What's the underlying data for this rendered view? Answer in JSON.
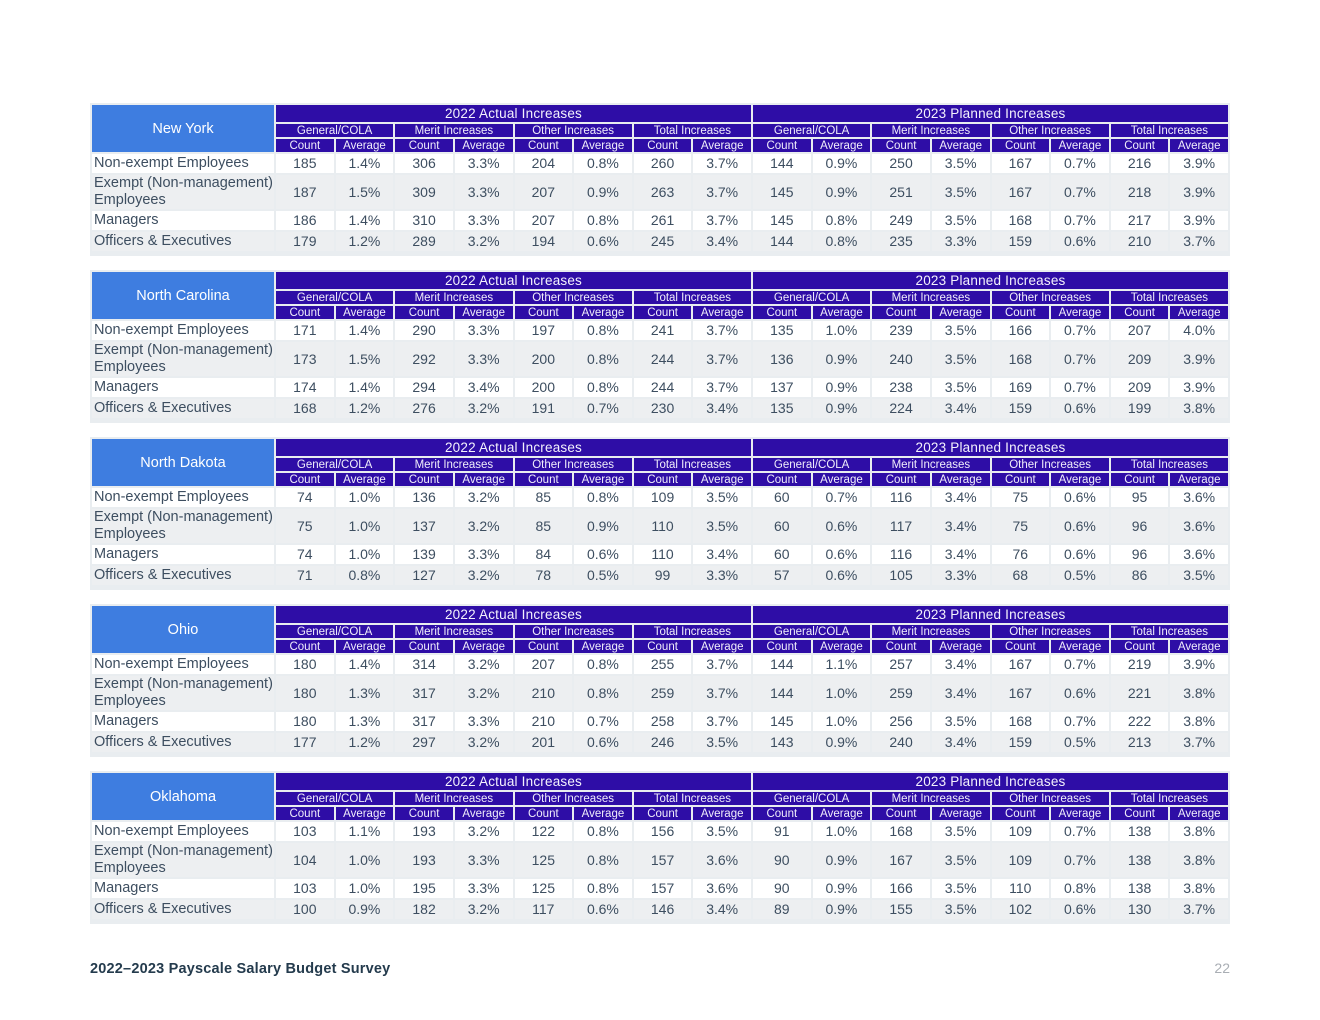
{
  "colors": {
    "header_indigo": "#2e0da6",
    "state_blue": "#3e7de0",
    "row_alt": "#edeff1",
    "table_gap": "#e9edf0",
    "text_dark": "#3d4e60",
    "footer_navy": "#243b4d",
    "page_number_gray": "#a9aeb4"
  },
  "footer": {
    "title": "2022–2023 Payscale Salary Budget Survey",
    "page_number": "22"
  },
  "table_template": {
    "year_groups": [
      "2022 Actual Increases",
      "2023 Planned Increases"
    ],
    "subgroups": [
      "General/COLA",
      "Merit Increases",
      "Other Increases",
      "Total Increases"
    ],
    "measure_labels": [
      "Count",
      "Average"
    ],
    "row_labels": [
      "Non-exempt Employees",
      "Exempt (Non-management) Employees",
      "Managers",
      "Officers & Executives"
    ]
  },
  "tables": [
    {
      "state": "New York",
      "rows": [
        [
          "185",
          "1.4%",
          "306",
          "3.3%",
          "204",
          "0.8%",
          "260",
          "3.7%",
          "144",
          "0.9%",
          "250",
          "3.5%",
          "167",
          "0.7%",
          "216",
          "3.9%"
        ],
        [
          "187",
          "1.5%",
          "309",
          "3.3%",
          "207",
          "0.9%",
          "263",
          "3.7%",
          "145",
          "0.9%",
          "251",
          "3.5%",
          "167",
          "0.7%",
          "218",
          "3.9%"
        ],
        [
          "186",
          "1.4%",
          "310",
          "3.3%",
          "207",
          "0.8%",
          "261",
          "3.7%",
          "145",
          "0.8%",
          "249",
          "3.5%",
          "168",
          "0.7%",
          "217",
          "3.9%"
        ],
        [
          "179",
          "1.2%",
          "289",
          "3.2%",
          "194",
          "0.6%",
          "245",
          "3.4%",
          "144",
          "0.8%",
          "235",
          "3.3%",
          "159",
          "0.6%",
          "210",
          "3.7%"
        ]
      ]
    },
    {
      "state": "North Carolina",
      "rows": [
        [
          "171",
          "1.4%",
          "290",
          "3.3%",
          "197",
          "0.8%",
          "241",
          "3.7%",
          "135",
          "1.0%",
          "239",
          "3.5%",
          "166",
          "0.7%",
          "207",
          "4.0%"
        ],
        [
          "173",
          "1.5%",
          "292",
          "3.3%",
          "200",
          "0.8%",
          "244",
          "3.7%",
          "136",
          "0.9%",
          "240",
          "3.5%",
          "168",
          "0.7%",
          "209",
          "3.9%"
        ],
        [
          "174",
          "1.4%",
          "294",
          "3.4%",
          "200",
          "0.8%",
          "244",
          "3.7%",
          "137",
          "0.9%",
          "238",
          "3.5%",
          "169",
          "0.7%",
          "209",
          "3.9%"
        ],
        [
          "168",
          "1.2%",
          "276",
          "3.2%",
          "191",
          "0.7%",
          "230",
          "3.4%",
          "135",
          "0.9%",
          "224",
          "3.4%",
          "159",
          "0.6%",
          "199",
          "3.8%"
        ]
      ]
    },
    {
      "state": "North Dakota",
      "rows": [
        [
          "74",
          "1.0%",
          "136",
          "3.2%",
          "85",
          "0.8%",
          "109",
          "3.5%",
          "60",
          "0.7%",
          "116",
          "3.4%",
          "75",
          "0.6%",
          "95",
          "3.6%"
        ],
        [
          "75",
          "1.0%",
          "137",
          "3.2%",
          "85",
          "0.9%",
          "110",
          "3.5%",
          "60",
          "0.6%",
          "117",
          "3.4%",
          "75",
          "0.6%",
          "96",
          "3.6%"
        ],
        [
          "74",
          "1.0%",
          "139",
          "3.3%",
          "84",
          "0.6%",
          "110",
          "3.4%",
          "60",
          "0.6%",
          "116",
          "3.4%",
          "76",
          "0.6%",
          "96",
          "3.6%"
        ],
        [
          "71",
          "0.8%",
          "127",
          "3.2%",
          "78",
          "0.5%",
          "99",
          "3.3%",
          "57",
          "0.6%",
          "105",
          "3.3%",
          "68",
          "0.5%",
          "86",
          "3.5%"
        ]
      ]
    },
    {
      "state": "Ohio",
      "rows": [
        [
          "180",
          "1.4%",
          "314",
          "3.2%",
          "207",
          "0.8%",
          "255",
          "3.7%",
          "144",
          "1.1%",
          "257",
          "3.4%",
          "167",
          "0.7%",
          "219",
          "3.9%"
        ],
        [
          "180",
          "1.3%",
          "317",
          "3.2%",
          "210",
          "0.8%",
          "259",
          "3.7%",
          "144",
          "1.0%",
          "259",
          "3.4%",
          "167",
          "0.6%",
          "221",
          "3.8%"
        ],
        [
          "180",
          "1.3%",
          "317",
          "3.3%",
          "210",
          "0.7%",
          "258",
          "3.7%",
          "145",
          "1.0%",
          "256",
          "3.5%",
          "168",
          "0.7%",
          "222",
          "3.8%"
        ],
        [
          "177",
          "1.2%",
          "297",
          "3.2%",
          "201",
          "0.6%",
          "246",
          "3.5%",
          "143",
          "0.9%",
          "240",
          "3.4%",
          "159",
          "0.5%",
          "213",
          "3.7%"
        ]
      ]
    },
    {
      "state": "Oklahoma",
      "rows": [
        [
          "103",
          "1.1%",
          "193",
          "3.2%",
          "122",
          "0.8%",
          "156",
          "3.5%",
          "91",
          "1.0%",
          "168",
          "3.5%",
          "109",
          "0.7%",
          "138",
          "3.8%"
        ],
        [
          "104",
          "1.0%",
          "193",
          "3.3%",
          "125",
          "0.8%",
          "157",
          "3.6%",
          "90",
          "0.9%",
          "167",
          "3.5%",
          "109",
          "0.7%",
          "138",
          "3.8%"
        ],
        [
          "103",
          "1.0%",
          "195",
          "3.3%",
          "125",
          "0.8%",
          "157",
          "3.6%",
          "90",
          "0.9%",
          "166",
          "3.5%",
          "110",
          "0.8%",
          "138",
          "3.8%"
        ],
        [
          "100",
          "0.9%",
          "182",
          "3.2%",
          "117",
          "0.6%",
          "146",
          "3.4%",
          "89",
          "0.9%",
          "155",
          "3.5%",
          "102",
          "0.6%",
          "130",
          "3.7%"
        ]
      ]
    }
  ]
}
